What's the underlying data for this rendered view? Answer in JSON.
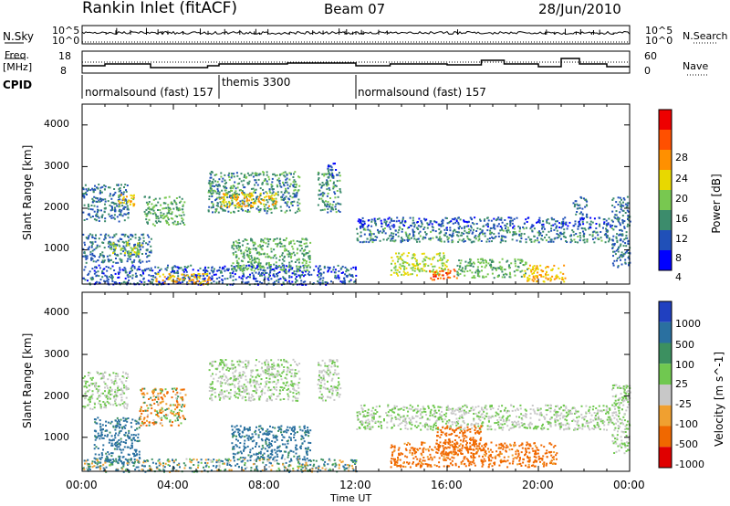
{
  "header": {
    "station": "Rankin Inlet (fitACF)",
    "beam": "Beam 07",
    "date": "28/Jun/2010"
  },
  "strip": {
    "nsky_label": "N.Sky",
    "nsky_ticks": [
      "10^5",
      "10^0"
    ],
    "nsearch_label": "N.Search",
    "nsearch_ticks": [
      "10^5",
      "10^0"
    ],
    "freq_label": "Freq.",
    "freq_unit": "[MHz]",
    "freq_ticks": [
      "18",
      "8"
    ],
    "nave_label": "Nave",
    "nave_ticks": [
      "60",
      "0"
    ],
    "cpid_label": "CPID",
    "cpid_segments": [
      {
        "label": "normalsound (fast) 157",
        "start_hour": 0,
        "end_hour": 6
      },
      {
        "label": "themis 3300",
        "start_hour": 6,
        "end_hour": 12
      },
      {
        "label": "normalsound (fast) 157",
        "start_hour": 12,
        "end_hour": 24
      }
    ]
  },
  "power_panel": {
    "ylabel": "Slant Range [km]",
    "yticks": [
      "4000",
      "3000",
      "2000",
      "1000"
    ],
    "colorbar_label": "Power [dB]",
    "colorbar_ticks": [
      "28",
      "24",
      "20",
      "16",
      "12",
      "8",
      "4"
    ],
    "colors": [
      "#0000ff",
      "#2050b8",
      "#3c8c6c",
      "#78c850",
      "#e8d800",
      "#ff9000",
      "#ff5000",
      "#ee0000"
    ]
  },
  "velocity_panel": {
    "ylabel": "Slant Range [km]",
    "yticks": [
      "4000",
      "3000",
      "2000",
      "1000"
    ],
    "colorbar_label": "Velocity [m s^-1]",
    "colorbar_ticks": [
      "1000",
      "500",
      "100",
      "25",
      "-25",
      "-100",
      "-500",
      "-1000"
    ],
    "colors": [
      "#2040c0",
      "#2a70a0",
      "#3c9060",
      "#70c850",
      "#c8c8c8",
      "#f0a030",
      "#f06800",
      "#e00000"
    ]
  },
  "xaxis": {
    "label": "Time UT",
    "ticks": [
      "00:00",
      "04:00",
      "08:00",
      "12:00",
      "16:00",
      "20:00",
      "00:00"
    ]
  },
  "chart_data": {
    "type": "heatmap",
    "x_range_hours": [
      0,
      24
    ],
    "y_range_km": [
      180,
      4500
    ],
    "power_regions": [
      {
        "t0": 0.0,
        "t1": 2.0,
        "r0": 1700,
        "r1": 2600,
        "power_db": 8
      },
      {
        "t0": 1.5,
        "t1": 2.3,
        "r0": 2050,
        "r1": 2350,
        "power_db": 18
      },
      {
        "t0": 2.7,
        "t1": 4.5,
        "r0": 1600,
        "r1": 2300,
        "power_db": 12
      },
      {
        "t0": 0.0,
        "t1": 3.0,
        "r0": 700,
        "r1": 1400,
        "power_db": 8
      },
      {
        "t0": 1.2,
        "t1": 2.6,
        "r0": 900,
        "r1": 1200,
        "power_db": 16
      },
      {
        "t0": 0.0,
        "t1": 12.0,
        "r0": 180,
        "r1": 650,
        "power_db": 6
      },
      {
        "t0": 3.2,
        "t1": 5.6,
        "r0": 180,
        "r1": 450,
        "power_db": 20
      },
      {
        "t0": 5.5,
        "t1": 9.5,
        "r0": 1900,
        "r1": 2900,
        "power_db": 10
      },
      {
        "t0": 6.0,
        "t1": 8.5,
        "r0": 2050,
        "r1": 2400,
        "power_db": 20
      },
      {
        "t0": 6.5,
        "t1": 10.0,
        "r0": 500,
        "r1": 1300,
        "power_db": 12
      },
      {
        "t0": 10.3,
        "t1": 11.3,
        "r0": 1900,
        "r1": 2900,
        "power_db": 10
      },
      {
        "t0": 10.7,
        "t1": 11.2,
        "r0": 2800,
        "r1": 3100,
        "power_db": 6
      },
      {
        "t0": 12.0,
        "t1": 23.2,
        "r0": 1200,
        "r1": 1550,
        "power_db": 9
      },
      {
        "t0": 12.0,
        "t1": 23.2,
        "r0": 1550,
        "r1": 1800,
        "power_db": 6
      },
      {
        "t0": 13.5,
        "t1": 16.0,
        "r0": 400,
        "r1": 950,
        "power_db": 16
      },
      {
        "t0": 15.2,
        "t1": 16.4,
        "r0": 300,
        "r1": 550,
        "power_db": 26
      },
      {
        "t0": 16.4,
        "t1": 19.5,
        "r0": 350,
        "r1": 800,
        "power_db": 12
      },
      {
        "t0": 19.3,
        "t1": 21.2,
        "r0": 250,
        "r1": 650,
        "power_db": 20
      },
      {
        "t0": 21.5,
        "t1": 22.1,
        "r0": 1800,
        "r1": 2300,
        "power_db": 8
      },
      {
        "t0": 23.2,
        "t1": 24.0,
        "r0": 600,
        "r1": 2300,
        "power_db": 8
      }
    ],
    "velocity_regions": [
      {
        "t0": 0.0,
        "t1": 2.0,
        "r0": 1700,
        "r1": 2600,
        "velocity": 0
      },
      {
        "t0": 0.5,
        "t1": 2.5,
        "r0": 400,
        "r1": 1500,
        "velocity": 200
      },
      {
        "t0": 2.5,
        "t1": 4.5,
        "r0": 1300,
        "r1": 2200,
        "velocity": -80
      },
      {
        "t0": 0.0,
        "t1": 12.0,
        "r0": 180,
        "r1": 500,
        "velocity": 60
      },
      {
        "t0": 5.5,
        "t1": 9.5,
        "r0": 1900,
        "r1": 2900,
        "velocity": 0
      },
      {
        "t0": 6.5,
        "t1": 10.0,
        "r0": 500,
        "r1": 1300,
        "velocity": 200
      },
      {
        "t0": 10.3,
        "t1": 11.3,
        "r0": 1900,
        "r1": 2900,
        "velocity": 0
      },
      {
        "t0": 12.0,
        "t1": 23.2,
        "r0": 1200,
        "r1": 1800,
        "velocity": 0
      },
      {
        "t0": 13.5,
        "t1": 20.8,
        "r0": 300,
        "r1": 900,
        "velocity": -200
      },
      {
        "t0": 15.5,
        "t1": 17.5,
        "r0": 600,
        "r1": 1300,
        "velocity": -300
      },
      {
        "t0": 23.2,
        "t1": 24.0,
        "r0": 600,
        "r1": 2300,
        "velocity": 0
      }
    ]
  }
}
